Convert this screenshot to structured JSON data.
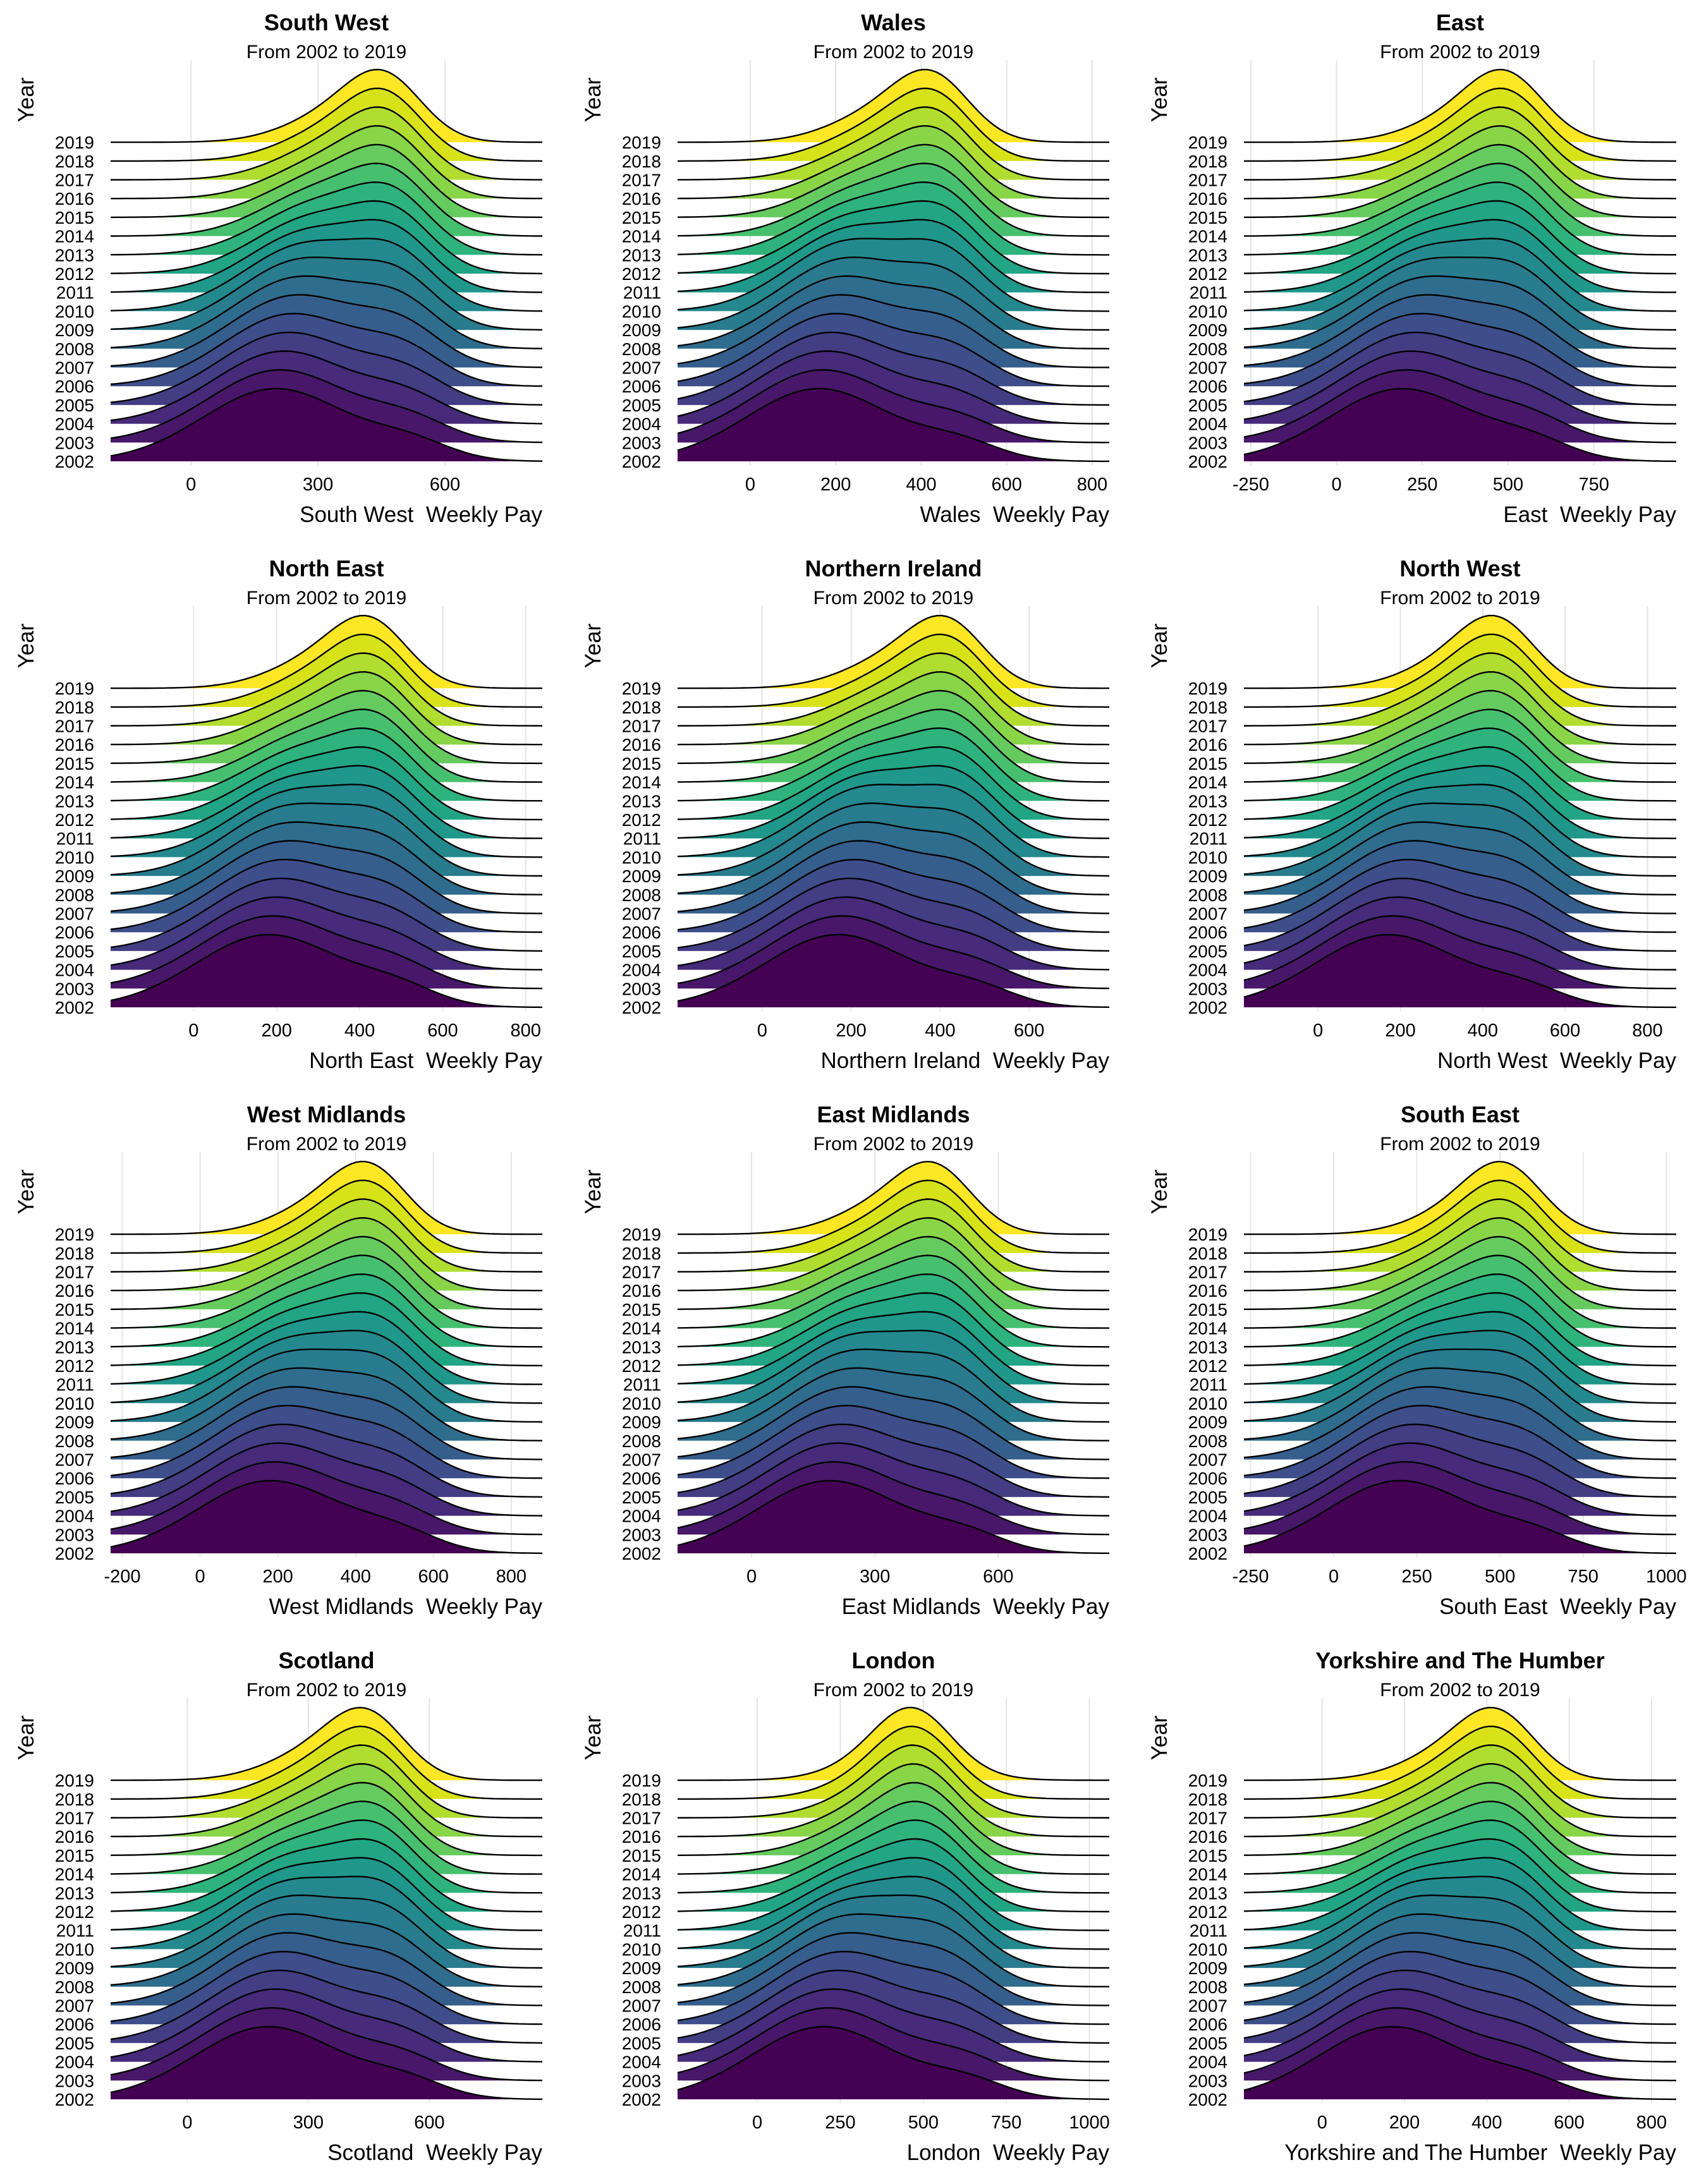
{
  "chart_data": [
    {
      "type": "ridgeline",
      "title": "South West",
      "subtitle": "From 2002 to 2019",
      "xlabel": "South West  Weekly Pay",
      "ylabel": "Year",
      "xlim": [
        -190,
        830
      ],
      "x_ticks": [
        0,
        300,
        600
      ],
      "peaks": [
        [
          200,
          360
        ],
        [
          520,
          460
        ]
      ],
      "years": [
        "2002",
        "2003",
        "2004",
        "2005",
        "2006",
        "2007",
        "2008",
        "2009",
        "2010",
        "2011",
        "2012",
        "2013",
        "2014",
        "2015",
        "2016",
        "2017",
        "2018",
        "2019"
      ]
    },
    {
      "type": "ridgeline",
      "title": "Wales",
      "subtitle": "From 2002 to 2019",
      "xlabel": "Wales  Weekly Pay",
      "ylabel": "Year",
      "xlim": [
        -170,
        840
      ],
      "x_ticks": [
        0,
        200,
        400,
        600,
        800
      ],
      "peaks": [
        [
          160,
          320
        ],
        [
          490,
          430
        ]
      ],
      "years": [
        "2002",
        "2003",
        "2004",
        "2005",
        "2006",
        "2007",
        "2008",
        "2009",
        "2010",
        "2011",
        "2012",
        "2013",
        "2014",
        "2015",
        "2016",
        "2017",
        "2018",
        "2019"
      ]
    },
    {
      "type": "ridgeline",
      "title": "East",
      "subtitle": "From 2002 to 2019",
      "xlabel": "East  Weekly Pay",
      "ylabel": "Year",
      "xlim": [
        -270,
        990
      ],
      "x_ticks": [
        -250,
        0,
        250,
        500,
        750
      ],
      "peaks": [
        [
          190,
          390
        ],
        [
          570,
          500
        ]
      ],
      "years": [
        "2002",
        "2003",
        "2004",
        "2005",
        "2006",
        "2007",
        "2008",
        "2009",
        "2010",
        "2011",
        "2012",
        "2013",
        "2014",
        "2015",
        "2016",
        "2017",
        "2018",
        "2019"
      ]
    },
    {
      "type": "ridgeline",
      "title": "North East",
      "subtitle": "From 2002 to 2019",
      "xlabel": "North East  Weekly Pay",
      "ylabel": "Year",
      "xlim": [
        -200,
        840
      ],
      "x_ticks": [
        0,
        200,
        400,
        600,
        800
      ],
      "peaks": [
        [
          180,
          320
        ],
        [
          490,
          430
        ]
      ],
      "years": [
        "2002",
        "2003",
        "2004",
        "2005",
        "2006",
        "2007",
        "2008",
        "2009",
        "2010",
        "2011",
        "2012",
        "2013",
        "2014",
        "2015",
        "2016",
        "2017",
        "2018",
        "2019"
      ]
    },
    {
      "type": "ridgeline",
      "title": "Northern Ireland",
      "subtitle": "From 2002 to 2019",
      "xlabel": "Northern Ireland  Weekly Pay",
      "ylabel": "Year",
      "xlim": [
        -190,
        780
      ],
      "x_ticks": [
        0,
        200,
        400,
        600
      ],
      "peaks": [
        [
          170,
          310
        ],
        [
          480,
          420
        ]
      ],
      "years": [
        "2002",
        "2003",
        "2004",
        "2005",
        "2006",
        "2007",
        "2008",
        "2009",
        "2010",
        "2011",
        "2012",
        "2013",
        "2014",
        "2015",
        "2016",
        "2017",
        "2018",
        "2019"
      ]
    },
    {
      "type": "ridgeline",
      "title": "North West",
      "subtitle": "From 2002 to 2019",
      "xlabel": "North West  Weekly Pay",
      "ylabel": "Year",
      "xlim": [
        -180,
        870
      ],
      "x_ticks": [
        0,
        200,
        400,
        600,
        800
      ],
      "peaks": [
        [
          170,
          350
        ],
        [
          500,
          440
        ]
      ],
      "years": [
        "2002",
        "2003",
        "2004",
        "2005",
        "2006",
        "2007",
        "2008",
        "2009",
        "2010",
        "2011",
        "2012",
        "2013",
        "2014",
        "2015",
        "2016",
        "2017",
        "2018",
        "2019"
      ]
    },
    {
      "type": "ridgeline",
      "title": "West Midlands",
      "subtitle": "From 2002 to 2019",
      "xlabel": "West Midlands  Weekly Pay",
      "ylabel": "Year",
      "xlim": [
        -230,
        880
      ],
      "x_ticks": [
        -200,
        0,
        200,
        400,
        600,
        800
      ],
      "peaks": [
        [
          180,
          330
        ],
        [
          510,
          440
        ]
      ],
      "years": [
        "2002",
        "2003",
        "2004",
        "2005",
        "2006",
        "2007",
        "2008",
        "2009",
        "2010",
        "2011",
        "2012",
        "2013",
        "2014",
        "2015",
        "2016",
        "2017",
        "2018",
        "2019"
      ]
    },
    {
      "type": "ridgeline",
      "title": "East Midlands",
      "subtitle": "From 2002 to 2019",
      "xlabel": "East Midlands  Weekly Pay",
      "ylabel": "Year",
      "xlim": [
        -180,
        870
      ],
      "x_ticks": [
        0,
        300,
        600
      ],
      "peaks": [
        [
          190,
          340
        ],
        [
          520,
          450
        ]
      ],
      "years": [
        "2002",
        "2003",
        "2004",
        "2005",
        "2006",
        "2007",
        "2008",
        "2009",
        "2010",
        "2011",
        "2012",
        "2013",
        "2014",
        "2015",
        "2016",
        "2017",
        "2018",
        "2019"
      ]
    },
    {
      "type": "ridgeline",
      "title": "South East",
      "subtitle": "From 2002 to 2019",
      "xlabel": "South East  Weekly Pay",
      "ylabel": "Year",
      "xlim": [
        -270,
        1030
      ],
      "x_ticks": [
        -250,
        0,
        250,
        500,
        750,
        1000
      ],
      "peaks": [
        [
          200,
          420
        ],
        [
          600,
          520
        ]
      ],
      "years": [
        "2002",
        "2003",
        "2004",
        "2005",
        "2006",
        "2007",
        "2008",
        "2009",
        "2010",
        "2011",
        "2012",
        "2013",
        "2014",
        "2015",
        "2016",
        "2017",
        "2018",
        "2019"
      ]
    },
    {
      "type": "ridgeline",
      "title": "Scotland",
      "subtitle": "From 2002 to 2019",
      "xlabel": "Scotland  Weekly Pay",
      "ylabel": "Year",
      "xlim": [
        -190,
        880
      ],
      "x_ticks": [
        0,
        300,
        600
      ],
      "peaks": [
        [
          200,
          340
        ],
        [
          540,
          450
        ]
      ],
      "years": [
        "2002",
        "2003",
        "2004",
        "2005",
        "2006",
        "2007",
        "2008",
        "2009",
        "2010",
        "2011",
        "2012",
        "2013",
        "2014",
        "2015",
        "2016",
        "2017",
        "2018",
        "2019"
      ]
    },
    {
      "type": "ridgeline",
      "title": "London",
      "subtitle": "From 2002 to 2019",
      "xlabel": "London  Weekly Pay",
      "ylabel": "Year",
      "xlim": [
        -240,
        1060
      ],
      "x_ticks": [
        0,
        250,
        500,
        750,
        1000
      ],
      "peaks": [
        [
          200,
          430
        ],
        [
          630,
          470
        ]
      ],
      "years": [
        "2002",
        "2003",
        "2004",
        "2005",
        "2006",
        "2007",
        "2008",
        "2009",
        "2010",
        "2011",
        "2012",
        "2013",
        "2014",
        "2015",
        "2016",
        "2017",
        "2018",
        "2019"
      ]
    },
    {
      "type": "ridgeline",
      "title": "Yorkshire and The Humber",
      "subtitle": "From 2002 to 2019",
      "xlabel": "Yorkshire and The Humber  Weekly Pay",
      "ylabel": "Year",
      "xlim": [
        -190,
        860
      ],
      "x_ticks": [
        0,
        200,
        400,
        600,
        800
      ],
      "peaks": [
        [
          170,
          330
        ],
        [
          500,
          430
        ]
      ],
      "years": [
        "2002",
        "2003",
        "2004",
        "2005",
        "2006",
        "2007",
        "2008",
        "2009",
        "2010",
        "2011",
        "2012",
        "2013",
        "2014",
        "2015",
        "2016",
        "2017",
        "2018",
        "2019"
      ]
    }
  ],
  "palette": [
    "#440154",
    "#481769",
    "#472a7a",
    "#433d84",
    "#3d4e8a",
    "#355e8d",
    "#2e6d8e",
    "#297b8e",
    "#23898e",
    "#1f978b",
    "#21a585",
    "#2eb37c",
    "#46c06f",
    "#65cb5e",
    "#89d548",
    "#b0dd2f",
    "#d8e219",
    "#fde725"
  ]
}
